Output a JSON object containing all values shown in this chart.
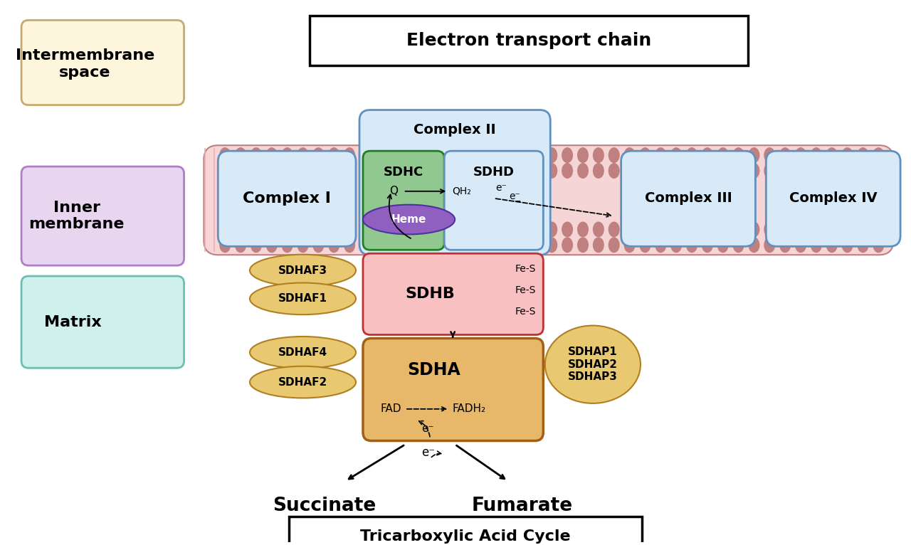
{
  "bg_color": "#ffffff",
  "title_etc": "Electron transport chain",
  "tca_label": "Tricarboxylic Acid Cycle",
  "intermembrane_label": "Intermembrane\nspace",
  "inner_membrane_label": "Inner\nmembrane",
  "matrix_label": "Matrix",
  "complex_I_label": "Complex I",
  "complex_II_label": "Complex II",
  "complex_III_label": "Complex III",
  "complex_IV_label": "Complex IV",
  "SDHC_label": "SDHC",
  "SDHD_label": "SDHD",
  "SDHB_label": "SDHB",
  "SDHA_label": "SDHA",
  "heme_label": "Heme",
  "fes_labels": [
    "Fe-S",
    "Fe-S",
    "Fe-S"
  ],
  "fad_label": "FAD",
  "fadh2_label": "FADH₂",
  "Q_label": "Q",
  "QH2_label": "QH₂",
  "eminus_label": "e⁻",
  "succinate_label": "Succinate",
  "fumarate_label": "Fumarate",
  "sdhaf_labels": [
    "SDHAF3",
    "SDHAF1",
    "SDHAF4",
    "SDHAF2"
  ],
  "sdhap_labels": [
    "SDHAP1",
    "SDHAP2",
    "SDHAP3"
  ],
  "colors": {
    "intermembrane_box": "#fdf5dc",
    "intermembrane_border": "#c8a96e",
    "inner_membrane_box": "#e8d5f0",
    "inner_membrane_border": "#b07ec8",
    "matrix_box": "#d0f0ec",
    "matrix_border": "#6bbfb5",
    "membrane_bg": "#f5d5d5",
    "membrane_dots": "#c08080",
    "complex_fill": "#d8eaf8",
    "complex_border": "#6090c0",
    "SDHC_fill": "#90c890",
    "SDHC_border": "#208020",
    "SDHD_fill": "#d8eaf8",
    "SDHD_border": "#6090c0",
    "SDHB_fill": "#f8c0c0",
    "SDHB_border": "#c03030",
    "SDHA_fill": "#e8b86a",
    "SDHA_border": "#a06018",
    "heme_fill": "#9060c0",
    "heme_border": "#5030a0",
    "sdhaf_fill": "#e8c870",
    "sdhaf_border": "#b08020",
    "sdhap_fill": "#e8c870",
    "sdhap_border": "#b08020"
  }
}
